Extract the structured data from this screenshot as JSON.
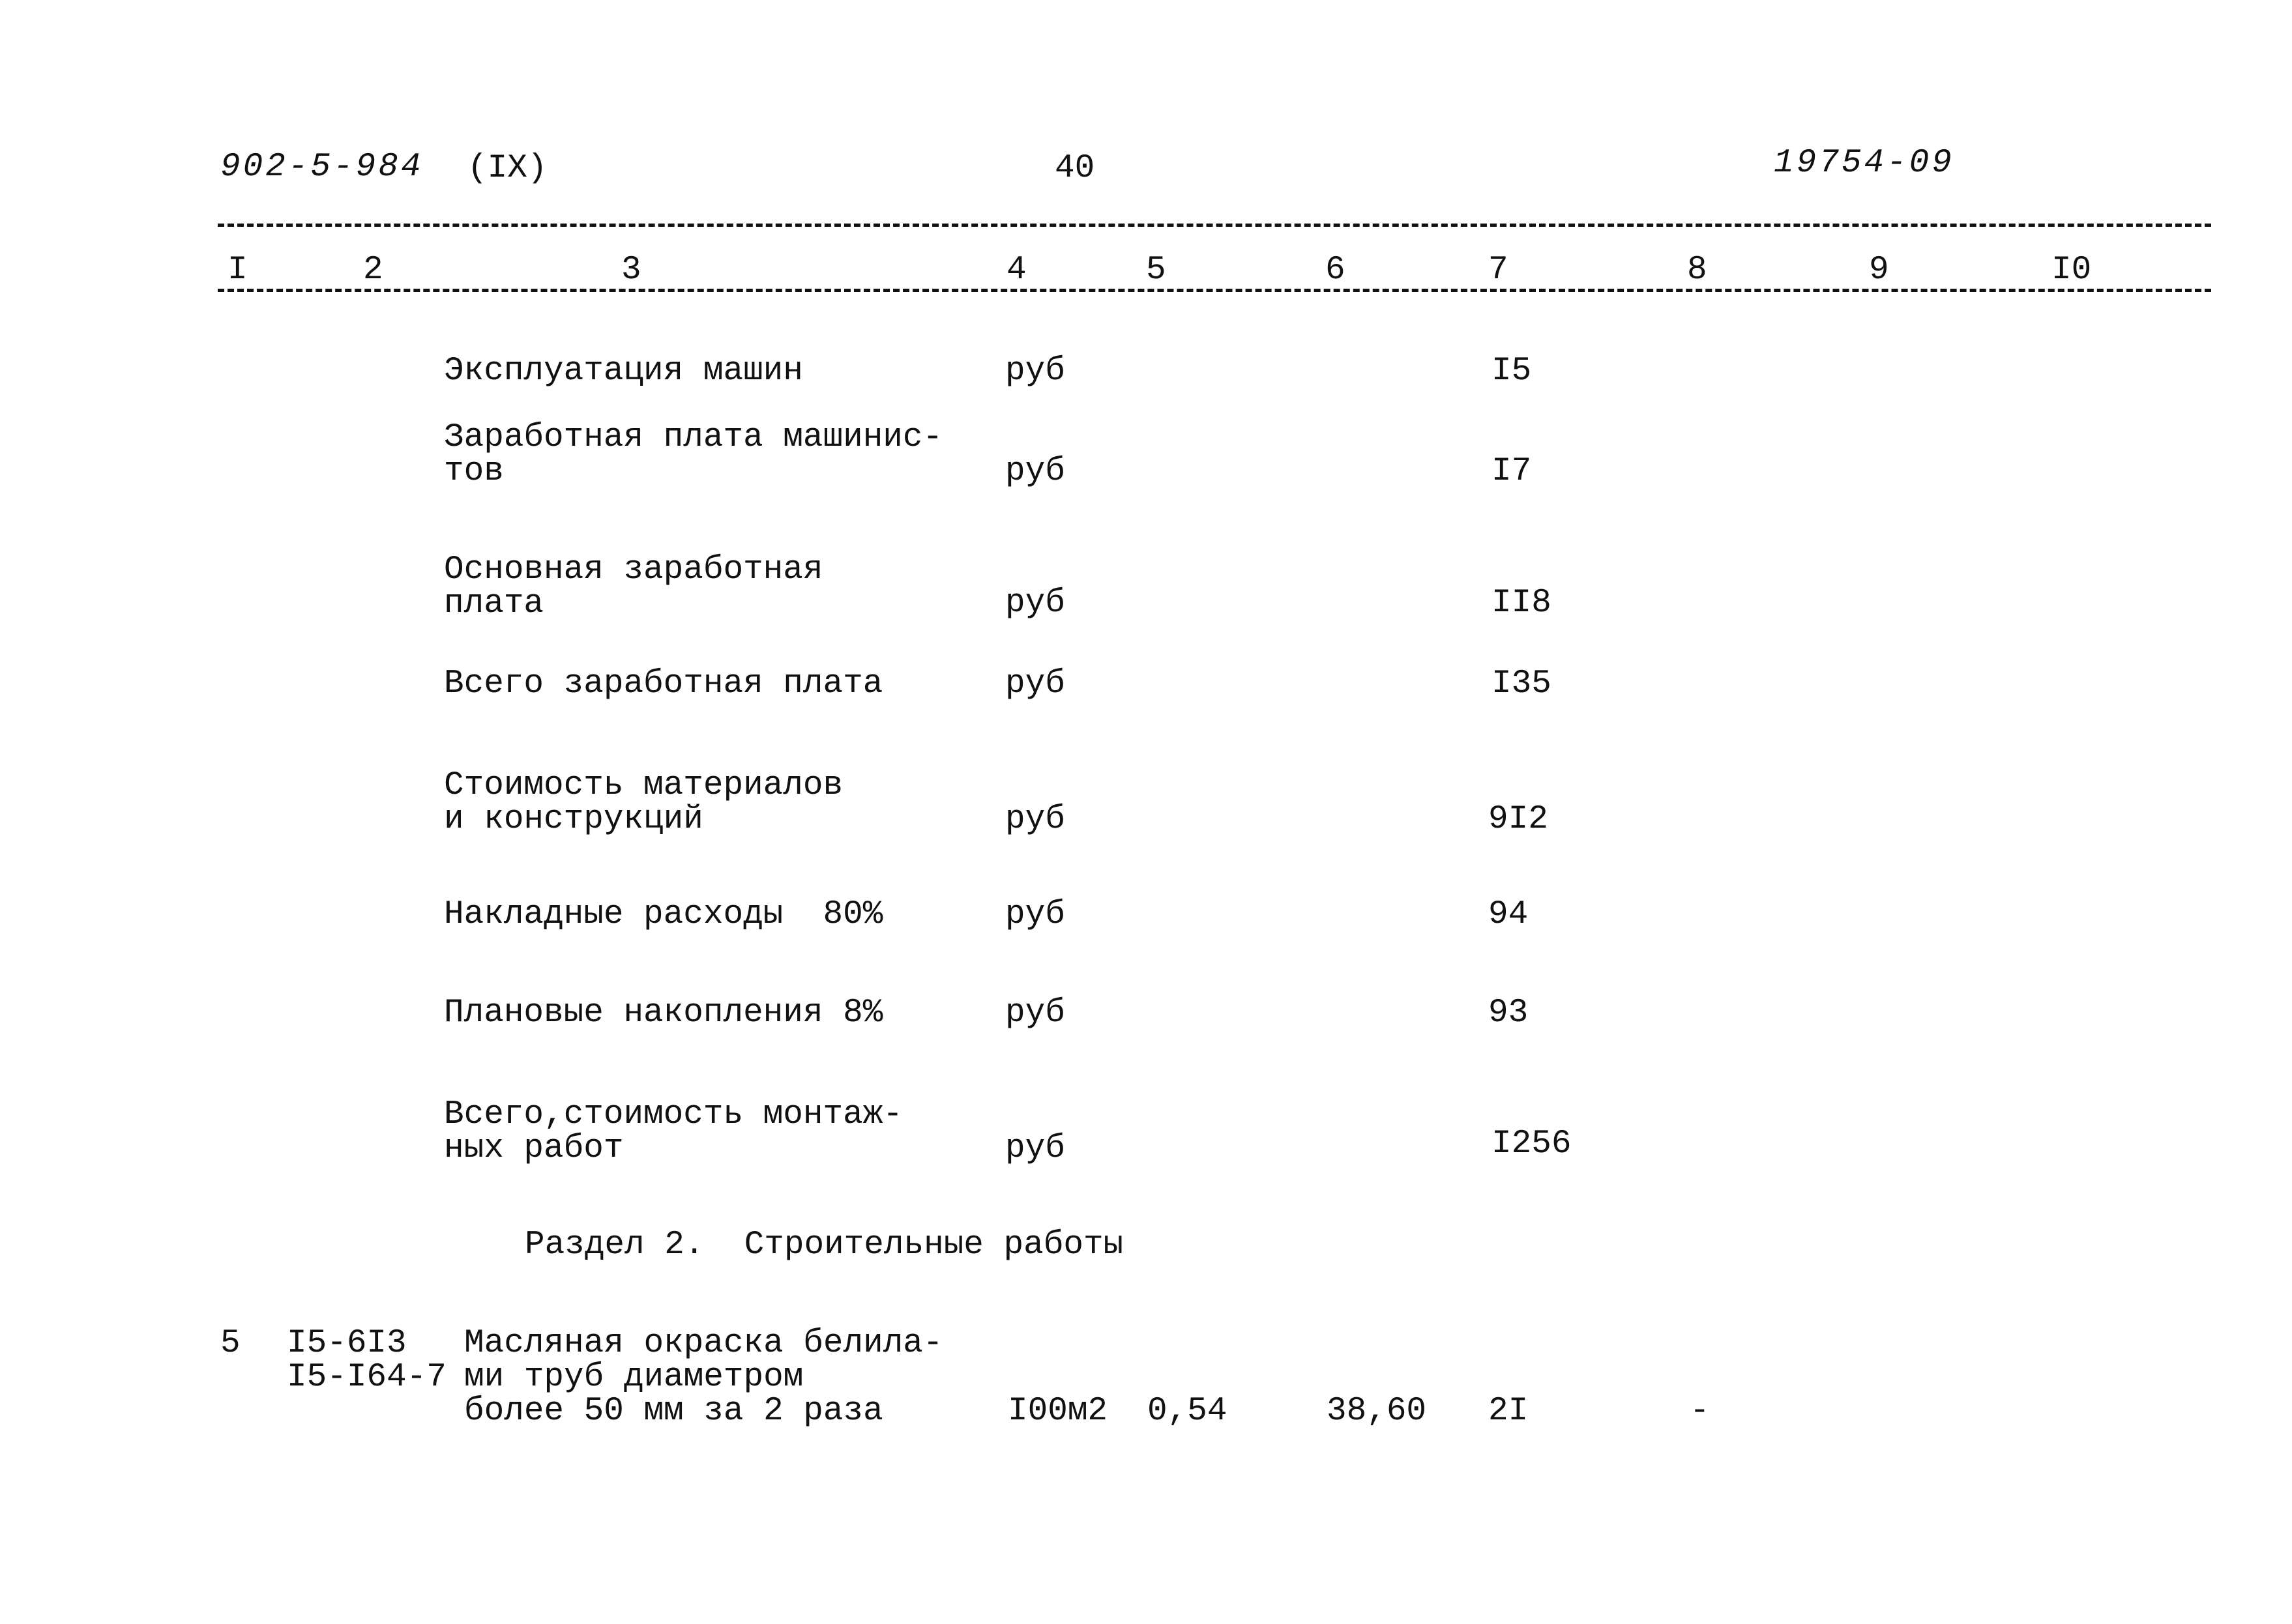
{
  "header": {
    "doc_code": "902-5-984",
    "part": "(IX)",
    "page_number": "40",
    "inventory_number": "19754-09"
  },
  "columns": [
    "I",
    "2",
    "3",
    "4",
    "5",
    "6",
    "7",
    "8",
    "9",
    "I0"
  ],
  "summary_rows": [
    {
      "label": "Эксплуатация машин",
      "unit": "руб",
      "value": "I5"
    },
    {
      "label": "Заработная плата машинис-\nтов",
      "unit": "руб",
      "value": "I7"
    },
    {
      "label": "Основная заработная\nплата",
      "unit": "руб",
      "value": "II8"
    },
    {
      "label": "Всего заработная плата",
      "unit": "руб",
      "value": "I35"
    },
    {
      "label": "Стоимость материалов\nи конструкций",
      "unit": "руб",
      "value": "9I2"
    },
    {
      "label": "Накладные расходы  80%",
      "unit": "руб",
      "value": "94"
    },
    {
      "label": "Плановые накопления 8%",
      "unit": "руб",
      "value": "93"
    },
    {
      "label": "Всего,стоимость монтаж-\nных работ",
      "unit": "руб",
      "value": "I256"
    }
  ],
  "section": {
    "title": "Раздел 2.  Строительные работы"
  },
  "items": [
    {
      "number": "5",
      "code": "I5-6I3\nI5-I64-7",
      "description": "Масляная окраска белила-\nми труб диаметром\nболее 50 мм за 2 раза",
      "unit": "I00м2",
      "quantity": "0,54",
      "unit_price": "38,60",
      "total": "2I",
      "col8": "-"
    }
  ]
}
